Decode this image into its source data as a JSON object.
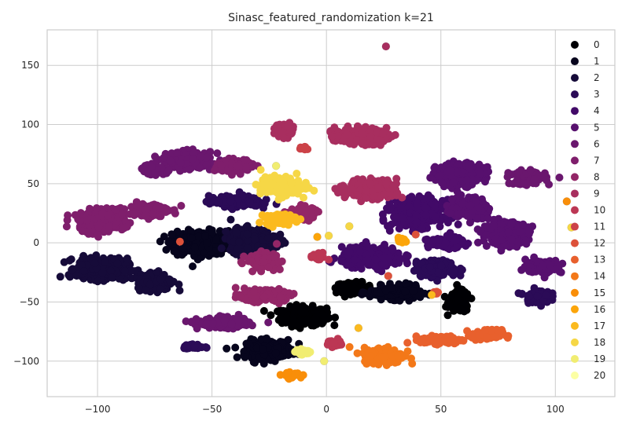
{
  "chart_data": {
    "type": "scatter",
    "title": "Sinasc_featured_randomization k=21",
    "xlabel": "",
    "ylabel": "",
    "xlim": [
      -122,
      126
    ],
    "ylim": [
      -130,
      180
    ],
    "xticks": [
      -100,
      -50,
      0,
      50,
      100
    ],
    "yticks": [
      -100,
      -50,
      0,
      50,
      100,
      150
    ],
    "grid": true,
    "legend_position": "top-right",
    "legend": [
      "0",
      "1",
      "2",
      "3",
      "4",
      "5",
      "6",
      "7",
      "8",
      "9",
      "10",
      "11",
      "12",
      "13",
      "14",
      "15",
      "16",
      "17",
      "18",
      "19",
      "20"
    ],
    "colors": [
      "#000004",
      "#07051d",
      "#160b39",
      "#2b0b57",
      "#420a68",
      "#57106e",
      "#6a176e",
      "#7f1e6c",
      "#932667",
      "#a82e5f",
      "#bc3754",
      "#cc4248",
      "#dd513a",
      "#e8602d",
      "#f37819",
      "#f98e09",
      "#fca50a",
      "#fbba1f",
      "#f6d746",
      "#f1ed71",
      "#fcffa4"
    ],
    "clusters": [
      {
        "cluster": 0,
        "x": -10,
        "y": -62,
        "sx": 9,
        "sy": 7
      },
      {
        "cluster": 0,
        "x": 12,
        "y": -38,
        "sx": 7,
        "sy": 4
      },
      {
        "cluster": 0,
        "x": 58,
        "y": -50,
        "sx": 4,
        "sy": 8
      },
      {
        "cluster": 1,
        "x": -55,
        "y": 0,
        "sx": 11,
        "sy": 9
      },
      {
        "cluster": 1,
        "x": -25,
        "y": -90,
        "sx": 9,
        "sy": 7
      },
      {
        "cluster": 1,
        "x": 30,
        "y": -42,
        "sx": 10,
        "sy": 5
      },
      {
        "cluster": 2,
        "x": -98,
        "y": -22,
        "sx": 10,
        "sy": 8
      },
      {
        "cluster": 2,
        "x": -75,
        "y": -32,
        "sx": 7,
        "sy": 7
      },
      {
        "cluster": 2,
        "x": -32,
        "y": 2,
        "sx": 9,
        "sy": 9
      },
      {
        "cluster": 3,
        "x": -40,
        "y": 35,
        "sx": 10,
        "sy": 4
      },
      {
        "cluster": 3,
        "x": 48,
        "y": -22,
        "sx": 8,
        "sy": 6
      },
      {
        "cluster": 3,
        "x": 92,
        "y": -45,
        "sx": 5,
        "sy": 5
      },
      {
        "cluster": 3,
        "x": -58,
        "y": -88,
        "sx": 4,
        "sy": 2
      },
      {
        "cluster": 4,
        "x": 20,
        "y": -12,
        "sx": 12,
        "sy": 7
      },
      {
        "cluster": 4,
        "x": 40,
        "y": 25,
        "sx": 10,
        "sy": 10
      },
      {
        "cluster": 4,
        "x": 52,
        "y": 0,
        "sx": 7,
        "sy": 4
      },
      {
        "cluster": 5,
        "x": 58,
        "y": 58,
        "sx": 9,
        "sy": 8
      },
      {
        "cluster": 5,
        "x": 62,
        "y": 30,
        "sx": 7,
        "sy": 8
      },
      {
        "cluster": 5,
        "x": 78,
        "y": 8,
        "sx": 9,
        "sy": 8
      },
      {
        "cluster": 5,
        "x": 95,
        "y": -20,
        "sx": 7,
        "sy": 5
      },
      {
        "cluster": 6,
        "x": -60,
        "y": 70,
        "sx": 9,
        "sy": 6
      },
      {
        "cluster": 6,
        "x": -45,
        "y": -68,
        "sx": 10,
        "sy": 4
      },
      {
        "cluster": 6,
        "x": 88,
        "y": 55,
        "sx": 7,
        "sy": 5
      },
      {
        "cluster": 6,
        "x": -75,
        "y": 62,
        "sx": 5,
        "sy": 4
      },
      {
        "cluster": 7,
        "x": -98,
        "y": 18,
        "sx": 9,
        "sy": 8
      },
      {
        "cluster": 7,
        "x": -78,
        "y": 28,
        "sx": 8,
        "sy": 5
      },
      {
        "cluster": 7,
        "x": -40,
        "y": 65,
        "sx": 7,
        "sy": 5
      },
      {
        "cluster": 8,
        "x": -28,
        "y": -45,
        "sx": 9,
        "sy": 4
      },
      {
        "cluster": 8,
        "x": -10,
        "y": 25,
        "sx": 5,
        "sy": 5
      },
      {
        "cluster": 8,
        "x": -28,
        "y": -15,
        "sx": 6,
        "sy": 6
      },
      {
        "cluster": 9,
        "x": 15,
        "y": 90,
        "sx": 10,
        "sy": 6
      },
      {
        "cluster": 9,
        "x": 20,
        "y": 45,
        "sx": 10,
        "sy": 7
      },
      {
        "cluster": 9,
        "x": -18,
        "y": 95,
        "sx": 4,
        "sy": 5
      },
      {
        "cluster": 10,
        "x": -4,
        "y": -12,
        "sx": 3,
        "sy": 3
      },
      {
        "cluster": 10,
        "x": 4,
        "y": -85,
        "sx": 3,
        "sy": 3
      },
      {
        "cluster": 11,
        "x": -10,
        "y": 80,
        "sx": 1.5,
        "sy": 1.5
      },
      {
        "cluster": 12,
        "x": 48,
        "y": -42,
        "sx": 1.5,
        "sy": 1.5
      },
      {
        "cluster": 13,
        "x": 70,
        "y": -78,
        "sx": 6,
        "sy": 4
      },
      {
        "cluster": 13,
        "x": 50,
        "y": -82,
        "sx": 8,
        "sy": 3
      },
      {
        "cluster": 14,
        "x": 25,
        "y": -95,
        "sx": 8,
        "sy": 6
      },
      {
        "cluster": 15,
        "x": -15,
        "y": -112,
        "sx": 4,
        "sy": 2
      },
      {
        "cluster": 16,
        "x": 33,
        "y": 2,
        "sx": 2,
        "sy": 2
      },
      {
        "cluster": 17,
        "x": -20,
        "y": 20,
        "sx": 6,
        "sy": 4
      },
      {
        "cluster": 18,
        "x": -20,
        "y": 48,
        "sx": 8,
        "sy": 7
      },
      {
        "cluster": 19,
        "x": -10,
        "y": -92,
        "sx": 3,
        "sy": 2
      }
    ],
    "singles": [
      {
        "cluster": 9,
        "x": 26,
        "y": 166
      },
      {
        "cluster": 12,
        "x": -64,
        "y": 1
      },
      {
        "cluster": 12,
        "x": 27,
        "y": -28
      },
      {
        "cluster": 12,
        "x": 39,
        "y": 7
      },
      {
        "cluster": 15,
        "x": 105,
        "y": 35
      },
      {
        "cluster": 16,
        "x": -4,
        "y": 5
      },
      {
        "cluster": 17,
        "x": 14,
        "y": -72
      },
      {
        "cluster": 17,
        "x": 46,
        "y": -44
      },
      {
        "cluster": 18,
        "x": 10,
        "y": 14
      },
      {
        "cluster": 18,
        "x": 107,
        "y": 13
      },
      {
        "cluster": 18,
        "x": 1,
        "y": 6
      },
      {
        "cluster": 19,
        "x": -22,
        "y": 65
      },
      {
        "cluster": 19,
        "x": -1,
        "y": -100
      }
    ]
  }
}
